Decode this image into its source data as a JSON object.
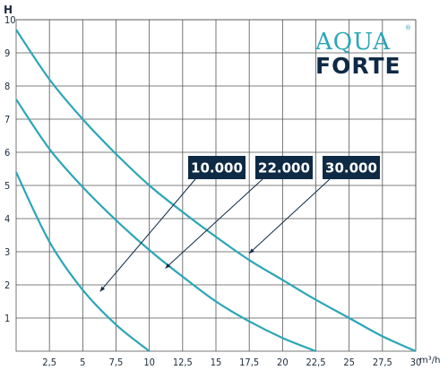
{
  "chart_data": {
    "type": "line",
    "ylabel": "H",
    "xlabel": "m³/h",
    "xlim": [
      0,
      30
    ],
    "ylim": [
      0,
      10
    ],
    "x_ticks": [
      2.5,
      5,
      7.5,
      10,
      12.5,
      15,
      17.5,
      20,
      22.5,
      25,
      27.5,
      30
    ],
    "x_tick_labels": [
      "2,5",
      "5",
      "7,5",
      "10",
      "12,5",
      "15",
      "17,5",
      "20",
      "22,5",
      "25",
      "27,5",
      "30"
    ],
    "y_ticks": [
      1,
      2,
      3,
      4,
      5,
      6,
      7,
      8,
      9,
      10
    ],
    "y_tick_labels": [
      "1",
      "2",
      "3",
      "4",
      "5",
      "6",
      "7",
      "8",
      "9",
      "10"
    ],
    "grid": true,
    "series": [
      {
        "name": "10.000",
        "x": [
          0,
          2.5,
          5,
          7.5,
          10
        ],
        "y": [
          5.4,
          3.3,
          1.85,
          0.8,
          0
        ]
      },
      {
        "name": "22.000",
        "x": [
          0,
          2.5,
          5,
          7.5,
          10,
          12.5,
          15,
          17.5,
          20,
          22.5
        ],
        "y": [
          7.6,
          6.1,
          4.95,
          3.95,
          3.05,
          2.25,
          1.5,
          0.9,
          0.4,
          0
        ]
      },
      {
        "name": "30.000",
        "x": [
          0,
          2.5,
          5,
          7.5,
          10,
          12.5,
          15,
          17.5,
          20,
          22.5,
          25,
          27.5,
          30
        ],
        "y": [
          9.7,
          8.2,
          7.0,
          5.95,
          5.0,
          4.2,
          3.45,
          2.75,
          2.15,
          1.55,
          1.0,
          0.45,
          0
        ]
      }
    ],
    "labels": [
      {
        "text": "10.000",
        "series": "10.000",
        "pointer_at": {
          "x": 6.3,
          "y": 1.8
        }
      },
      {
        "text": "22.000",
        "series": "22.000",
        "pointer_at": {
          "x": 11.2,
          "y": 2.5
        }
      },
      {
        "text": "30.000",
        "series": "30.000",
        "pointer_at": {
          "x": 17.5,
          "y": 2.95
        }
      }
    ]
  },
  "logo": {
    "line1": "AQUA",
    "line2": "FORTE",
    "registered": "®"
  },
  "colors": {
    "curve": "#2aa6b8",
    "label_box": "#0e2a45",
    "label_text": "#ffffff",
    "grid": "#555555"
  }
}
